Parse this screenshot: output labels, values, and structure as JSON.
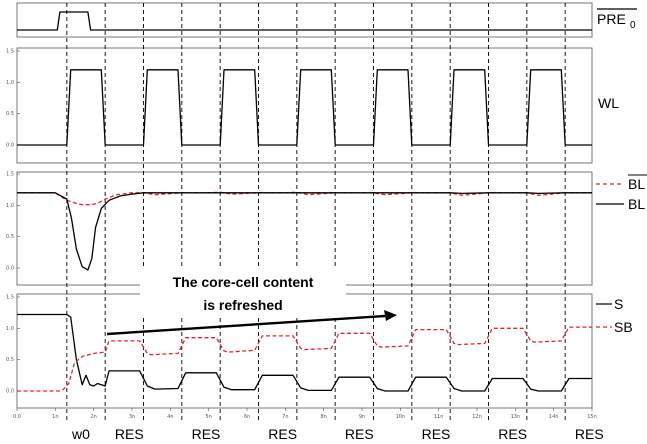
{
  "colors": {
    "solid": "#000000",
    "dashed": "#e0262d",
    "frame": "#555555",
    "grid": "#000000"
  },
  "chart_data": [
    {
      "type": "line",
      "panel": "pre0",
      "ylim": [
        0,
        1
      ],
      "yticks": [],
      "series": [
        {
          "name": "PRE0",
          "style": "solid",
          "x": [
            0,
            1.05,
            1.12,
            1.85,
            1.92,
            15
          ],
          "y": [
            0,
            0,
            1,
            1,
            0,
            0
          ]
        }
      ]
    },
    {
      "type": "line",
      "panel": "wl",
      "ylim": [
        0,
        1.5
      ],
      "yticks": [
        "0.0",
        "0.5",
        "1.0",
        "1.5"
      ],
      "series": [
        {
          "name": "WL",
          "style": "solid",
          "pulses": [
            [
              1.3,
              2.3
            ],
            [
              3.3,
              4.3
            ],
            [
              5.3,
              6.3
            ],
            [
              7.3,
              8.3
            ],
            [
              9.3,
              10.3
            ],
            [
              11.3,
              12.3
            ],
            [
              13.3,
              14.3
            ]
          ],
          "low": 0,
          "high": 1.2
        }
      ]
    },
    {
      "type": "line",
      "panel": "bl",
      "ylim": [
        0,
        1.5
      ],
      "yticks": [
        "0.0",
        "0.5",
        "1.0",
        "1.5"
      ],
      "series": [
        {
          "name": "BL_bar",
          "style": "dashed",
          "x": [
            0,
            1,
            1.3,
            1.5,
            1.7,
            1.9,
            2.1,
            2.3,
            2.6,
            3,
            3.3,
            3.6,
            4.3,
            5,
            5.3,
            5.6,
            6.3,
            7,
            7.3,
            7.6,
            8.3,
            9,
            9.3,
            9.6,
            10.3,
            11,
            11.3,
            11.6,
            12.3,
            13,
            13.3,
            13.6,
            14.3,
            15
          ],
          "y": [
            1.2,
            1.2,
            1.08,
            1.04,
            1.01,
            1.01,
            1.03,
            1.1,
            1.17,
            1.2,
            1.2,
            1.17,
            1.2,
            1.2,
            1.21,
            1.18,
            1.2,
            1.2,
            1.21,
            1.17,
            1.2,
            1.2,
            1.2,
            1.17,
            1.2,
            1.2,
            1.2,
            1.16,
            1.2,
            1.2,
            1.2,
            1.16,
            1.2,
            1.2
          ]
        },
        {
          "name": "BL",
          "style": "solid",
          "x": [
            0,
            1,
            1.3,
            1.42,
            1.55,
            1.7,
            1.85,
            1.95,
            2.05,
            2.2,
            2.4,
            2.7,
            3,
            3.3,
            3.6,
            4.3,
            5,
            5.3,
            5.6,
            6.3,
            7,
            7.3,
            7.6,
            8.3,
            9,
            9.3,
            9.6,
            10.3,
            11,
            11.3,
            11.6,
            12.3,
            13,
            13.3,
            13.6,
            14.3,
            15
          ],
          "y": [
            1.2,
            1.2,
            1.1,
            0.8,
            0.3,
            0.02,
            -0.03,
            0.15,
            0.65,
            0.95,
            1.08,
            1.15,
            1.18,
            1.2,
            1.2,
            1.2,
            1.2,
            1.2,
            1.2,
            1.2,
            1.2,
            1.2,
            1.2,
            1.2,
            1.2,
            1.2,
            1.2,
            1.2,
            1.2,
            1.2,
            1.19,
            1.2,
            1.2,
            1.2,
            1.19,
            1.2,
            1.2
          ]
        }
      ]
    },
    {
      "type": "line",
      "panel": "s",
      "ylim": [
        0,
        1.5
      ],
      "yticks": [
        "0.0",
        "0.5",
        "1.0",
        "1.5"
      ],
      "series": [
        {
          "name": "S",
          "style": "solid",
          "x": [
            0,
            1.3,
            1.4,
            1.55,
            1.7,
            1.8,
            1.9,
            2,
            2.1,
            2.3,
            2.4,
            3.2,
            3.4,
            3.6,
            4.2,
            4.4,
            5.2,
            5.4,
            5.6,
            6.2,
            6.4,
            7.2,
            7.4,
            7.6,
            8.2,
            8.4,
            9.2,
            9.4,
            9.6,
            10.2,
            10.4,
            11.2,
            11.4,
            11.6,
            12.2,
            12.4,
            13.2,
            13.4,
            13.6,
            14.2,
            14.4,
            15
          ],
          "y": [
            1.22,
            1.22,
            1.18,
            0.5,
            0.1,
            0.25,
            0.1,
            0.08,
            0.12,
            0.08,
            0.32,
            0.32,
            0.08,
            0.03,
            0.04,
            0.29,
            0.29,
            0.06,
            0.02,
            0.02,
            0.25,
            0.25,
            0.05,
            0.01,
            0.01,
            0.22,
            0.22,
            0.04,
            0,
            0,
            0.22,
            0.22,
            0.04,
            0,
            0,
            0.2,
            0.2,
            0.03,
            0,
            0,
            0.2,
            0.2
          ]
        },
        {
          "name": "SB",
          "style": "dashed",
          "x": [
            0,
            1.1,
            1.2,
            1.35,
            1.5,
            1.7,
            2,
            2.3,
            2.4,
            3.2,
            3.4,
            3.5,
            4.2,
            4.4,
            5.2,
            5.4,
            5.5,
            6.2,
            6.4,
            7.2,
            7.4,
            7.5,
            8.2,
            8.4,
            9.2,
            9.4,
            9.5,
            10.2,
            10.4,
            11.2,
            11.4,
            11.5,
            12.2,
            12.4,
            13.2,
            13.4,
            13.5,
            14.2,
            14.4,
            15
          ],
          "y": [
            0,
            0,
            0.02,
            0.12,
            0.45,
            0.55,
            0.6,
            0.62,
            0.8,
            0.8,
            0.6,
            0.58,
            0.6,
            0.85,
            0.85,
            0.64,
            0.62,
            0.65,
            0.88,
            0.88,
            0.68,
            0.66,
            0.68,
            0.92,
            0.92,
            0.72,
            0.7,
            0.72,
            0.98,
            0.98,
            0.76,
            0.74,
            0.76,
            1.0,
            1.0,
            0.8,
            0.78,
            0.8,
            1.02,
            1.02
          ]
        }
      ]
    }
  ],
  "x_axis": {
    "ticks": [
      "0.0",
      "1n",
      "2n",
      "3n",
      "4n",
      "5n",
      "6n",
      "7n",
      "8n",
      "9n",
      "10n",
      "11n",
      "12n",
      "13n",
      "14n",
      "15n"
    ],
    "xlim": [
      0,
      15
    ],
    "grid_dashed_at": [
      1.3,
      2.3,
      3.3,
      4.3,
      5.3,
      6.3,
      7.3,
      8.3,
      9.3,
      10.3,
      11.3,
      12.3,
      13.3,
      14.3
    ]
  },
  "labels": {
    "pre": "PRE",
    "pre_sub": "0",
    "wl": "WL",
    "bl_bar": "BL",
    "bl": "BL",
    "s": "S",
    "sb": "SB"
  },
  "annotation": {
    "line1": "The core-cell content",
    "line2": "is refreshed"
  },
  "phases": [
    "w0",
    "RES",
    "RES",
    "RES",
    "RES",
    "RES",
    "RES",
    "RES"
  ]
}
